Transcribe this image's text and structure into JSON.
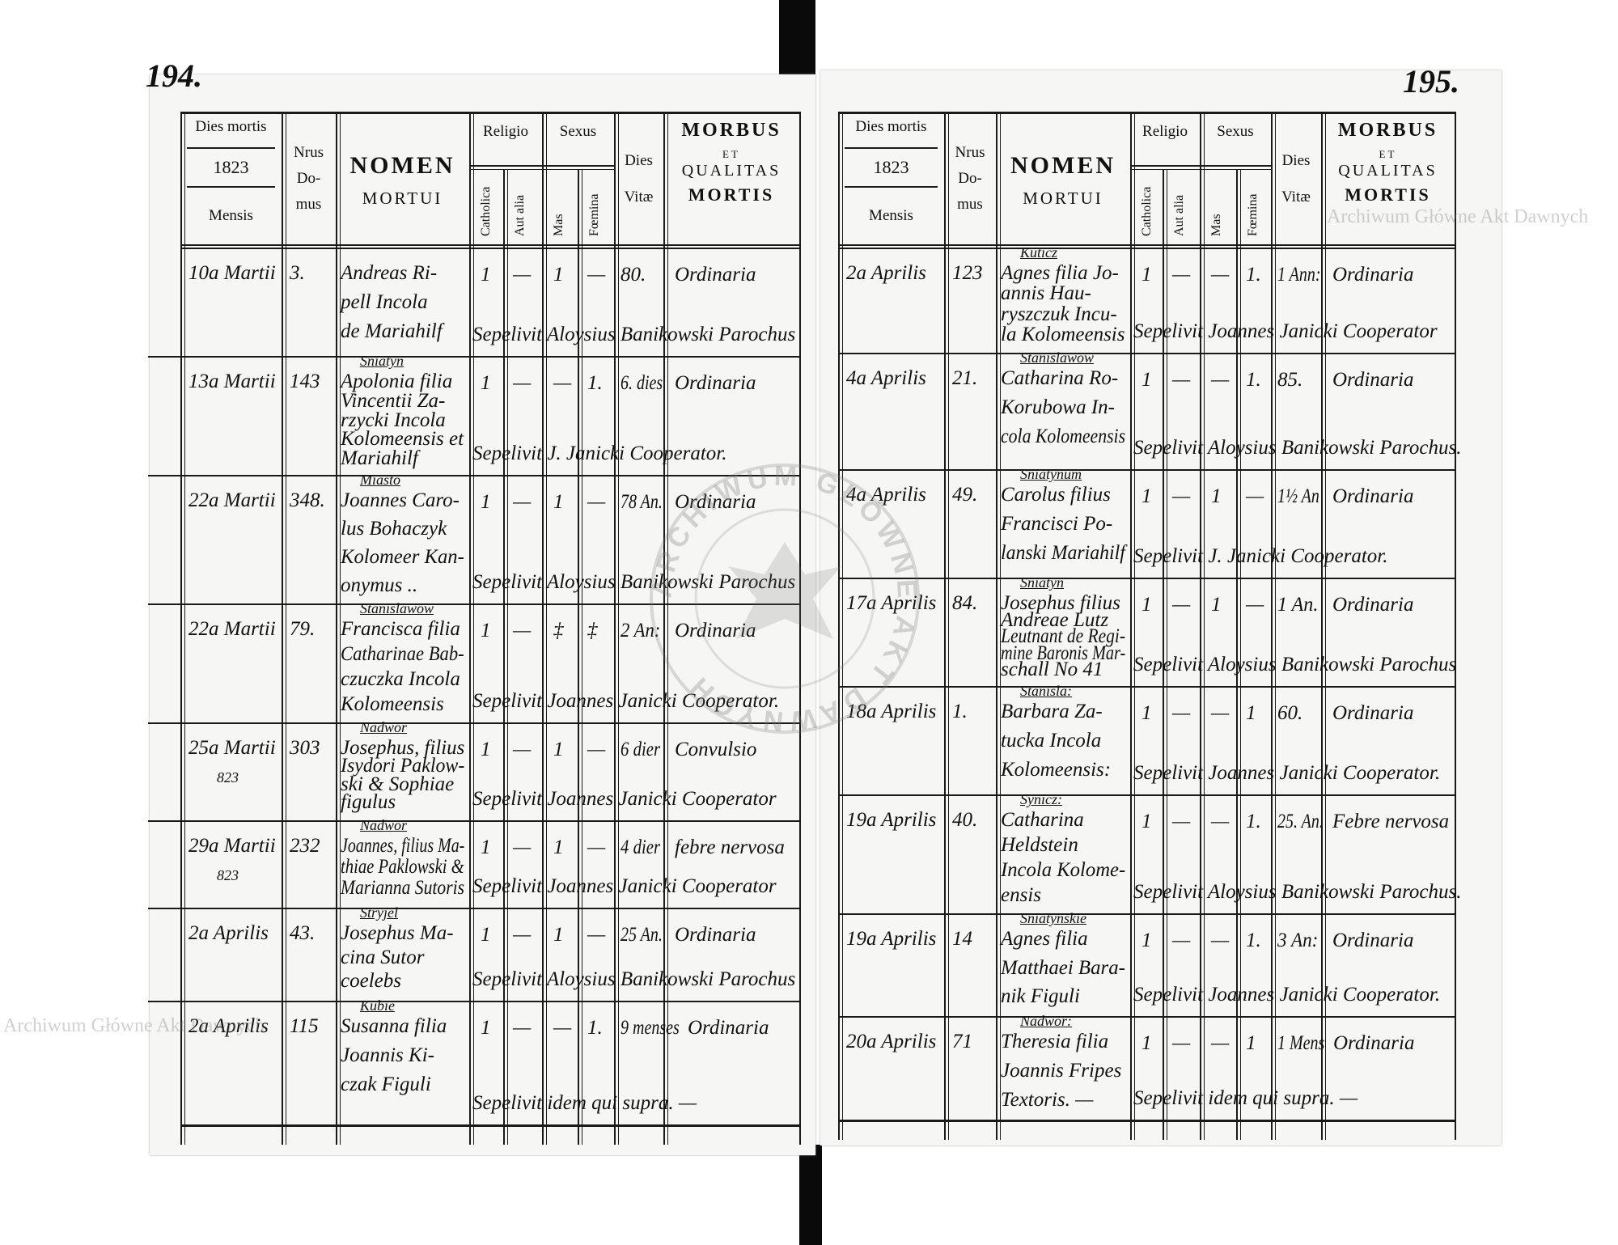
{
  "header": {
    "dies_mortis": "Dies mortis",
    "year": "1823",
    "mensis": "Mensis",
    "nrus_domus": [
      "Nrus",
      "Do-",
      "mus"
    ],
    "nomen": "NOMEN",
    "mortui": "MORTUI",
    "religio": "Religio",
    "sexus": "Sexus",
    "catholica": "Catholica",
    "aut_alia": "Aut alia",
    "mas": "Mas",
    "femina": "Fœmina",
    "dies_vitae": [
      "Dies",
      "Vitæ"
    ],
    "morbus": [
      "MORBUS",
      "ET",
      "QUALITAS",
      "MORTIS"
    ]
  },
  "watermark": "Archiwum Główne Akt Dawnych",
  "stamp_text": "ARCHIWUM GŁÓWNE AKT DAWNYCH",
  "pages": [
    {
      "page_number": "194.",
      "rows": [
        {
          "date": "10a Martii",
          "date2": "",
          "house": "3.",
          "village": "",
          "name": [
            "Andreas Ri-",
            "pell Incola",
            "de Mariahilf"
          ],
          "catholica": "1",
          "aut_alia": "—",
          "mas": "1",
          "femina": "—",
          "dies_vitae": "80.",
          "morbus": "Ordinaria",
          "sepelivit": "Sepelivit Aloysius Banikowski Parochus"
        },
        {
          "date": "13a Martii",
          "date2": "",
          "house": "143",
          "village": "Sniatyn",
          "name": [
            "Apolonia filia",
            "Vincentii Za-",
            "rzycki Incola",
            "Kolomeensis et",
            "Mariahilf"
          ],
          "catholica": "1",
          "aut_alia": "—",
          "mas": "—",
          "femina": "1.",
          "dies_vitae": "6. dies",
          "morbus": "Ordinaria",
          "sepelivit": "Sepelivit J. Janicki Cooperator."
        },
        {
          "date": "22a Martii",
          "date2": "",
          "house": "348.",
          "village": "Miasto",
          "name": [
            "Joannes Caro-",
            "lus Bohaczyk",
            "Kolomeer Kan-",
            "onymus .."
          ],
          "catholica": "1",
          "aut_alia": "—",
          "mas": "1",
          "femina": "—",
          "dies_vitae": "78 An.",
          "morbus": "Ordinaria",
          "sepelivit": "Sepelivit Aloysius Banikowski Parochus"
        },
        {
          "date": "22a Martii",
          "date2": "",
          "house": "79.",
          "village": "Stanislawow",
          "name": [
            "Francisca filia",
            "Catharinae Bab-",
            "czuczka Incola",
            "Kolomeensis"
          ],
          "catholica": "1",
          "aut_alia": "—",
          "mas": "‡",
          "femina": "‡",
          "dies_vitae": "2 An:",
          "morbus": "Ordinaria",
          "sepelivit": "Sepelivit Joannes Janicki Cooperator."
        },
        {
          "date": "25a Martii",
          "date2": "823",
          "house": "303",
          "village": "Nadwor",
          "name": [
            "Josephus, filius",
            "Isydori Paklow-",
            "ski & Sophiae",
            "figulus"
          ],
          "catholica": "1",
          "aut_alia": "—",
          "mas": "1",
          "femina": "—",
          "dies_vitae": "6 dier",
          "morbus": "Convulsio",
          "sepelivit": "Sepelivit Joannes Janicki Cooperator"
        },
        {
          "date": "29a Martii",
          "date2": "823",
          "house": "232",
          "village": "Nadwor",
          "name": [
            "Joannes, filius Ma-",
            "thiae Paklowski &",
            "Marianna Sutoris"
          ],
          "catholica": "1",
          "aut_alia": "—",
          "mas": "1",
          "femina": "—",
          "dies_vitae": "4 dier",
          "morbus": "febre nervosa",
          "sepelivit": "Sepelivit Joannes Janicki Cooperator"
        },
        {
          "date": "2a Aprilis",
          "date2": "",
          "house": "43.",
          "village": "Stryjel",
          "name": [
            "Josephus Ma-",
            "cina Sutor",
            "coelebs"
          ],
          "catholica": "1",
          "aut_alia": "—",
          "mas": "1",
          "femina": "—",
          "dies_vitae": "25 An.",
          "morbus": "Ordinaria",
          "sepelivit": "Sepelivit Aloysius Banikowski Parochus"
        },
        {
          "date": "2a Aprilis",
          "date2": "",
          "house": "115",
          "village": "Kubie",
          "name": [
            "Susanna filia",
            "Joannis Ki-",
            "czak Figuli"
          ],
          "catholica": "1",
          "aut_alia": "—",
          "mas": "—",
          "femina": "1.",
          "dies_vitae": "9 menses",
          "morbus": "Ordinaria",
          "sepelivit": "Sepelivit idem qui supra. —"
        }
      ]
    },
    {
      "page_number": "195.",
      "rows": [
        {
          "date": "2a Aprilis",
          "date2": "",
          "house": "123",
          "village": "Kuticz",
          "name": [
            "Agnes filia Jo-",
            "annis Hau-",
            "ryszczuk Incu-",
            "la Kolomeensis"
          ],
          "catholica": "1",
          "aut_alia": "—",
          "mas": "—",
          "femina": "1.",
          "dies_vitae": "1 Ann:",
          "morbus": "Ordinaria",
          "sepelivit": "Sepelivit Joannes Janicki Cooperator"
        },
        {
          "date": "4a Aprilis",
          "date2": "",
          "house": "21.",
          "village": "Stanislawow",
          "name": [
            "Catharina Ro-",
            "Korubowa In-",
            "cola Kolomeensis"
          ],
          "catholica": "1",
          "aut_alia": "—",
          "mas": "—",
          "femina": "1.",
          "dies_vitae": "85.",
          "morbus": "Ordinaria",
          "sepelivit": "Sepelivit Aloysius Banikowski Parochus."
        },
        {
          "date": "4a Aprilis",
          "date2": "",
          "house": "49.",
          "village": "Sniatynum",
          "name": [
            "Carolus filius",
            "Francisci Po-",
            "lanski Mariahilf"
          ],
          "catholica": "1",
          "aut_alia": "—",
          "mas": "1",
          "femina": "—",
          "dies_vitae": "1½ An",
          "morbus": "Ordinaria",
          "sepelivit": "Sepelivit J. Janicki Cooperator."
        },
        {
          "date": "17a Aprilis",
          "date2": "",
          "house": "84.",
          "village": "Sniatyn",
          "name": [
            "Josephus filius",
            "Andreae Lutz",
            "Leutnant de Regi-",
            "mine Baronis Mar-",
            "schall No 41"
          ],
          "catholica": "1",
          "aut_alia": "—",
          "mas": "1",
          "femina": "—",
          "dies_vitae": "1 An.",
          "morbus": "Ordinaria",
          "sepelivit": "Sepelivit Aloysius Banikowski Parochus"
        },
        {
          "date": "18a Aprilis",
          "date2": "",
          "house": "1.",
          "village": "Stanisla:",
          "name": [
            "Barbara Za-",
            "tucka Incola",
            "Kolomeensis:"
          ],
          "catholica": "1",
          "aut_alia": "—",
          "mas": "—",
          "femina": "1",
          "dies_vitae": "60.",
          "morbus": "Ordinaria",
          "sepelivit": "Sepelivit Joannes Janicki Cooperator."
        },
        {
          "date": "19a Aprilis",
          "date2": "",
          "house": "40.",
          "village": "Synicz:",
          "name": [
            "Catharina",
            "Heldstein",
            "Incola Kolome-",
            "ensis"
          ],
          "catholica": "1",
          "aut_alia": "—",
          "mas": "—",
          "femina": "1.",
          "dies_vitae": "25. An.",
          "morbus": "Febre nervosa",
          "sepelivit": "Sepelivit Aloysius Banikowski Parochus."
        },
        {
          "date": "19a Aprilis",
          "date2": "",
          "house": "14",
          "village": "Sniatynskie",
          "name": [
            "Agnes filia",
            "Matthaei Bara-",
            "nik Figuli"
          ],
          "catholica": "1",
          "aut_alia": "—",
          "mas": "—",
          "femina": "1.",
          "dies_vitae": "3 An:",
          "morbus": "Ordinaria",
          "sepelivit": "Sepelivit Joannes Janicki Cooperator."
        },
        {
          "date": "20a Aprilis",
          "date2": "",
          "house": "71",
          "village": "Nadwor:",
          "name": [
            "Theresia filia",
            "Joannis Fripes",
            "Textoris. —"
          ],
          "catholica": "1",
          "aut_alia": "—",
          "mas": "—",
          "femina": "1",
          "dies_vitae": "1 Mens",
          "morbus": "Ordinaria",
          "sepelivit": "Sepelivit idem qui supra. —"
        }
      ]
    }
  ]
}
